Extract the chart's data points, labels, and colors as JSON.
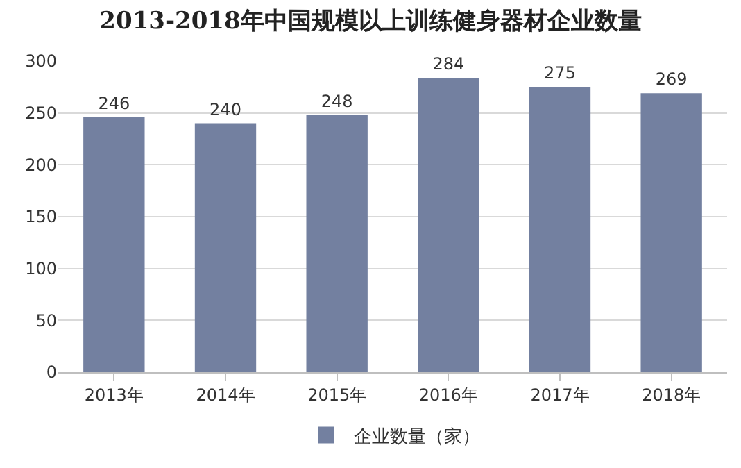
{
  "chart_data": {
    "type": "bar",
    "title": "2013-2018年中国规模以上训练健身器材企业数量",
    "categories": [
      "2013年",
      "2014年",
      "2015年",
      "2016年",
      "2017年",
      "2018年"
    ],
    "series": [
      {
        "name": "企业数量（家）",
        "color": "#7380a0",
        "values": [
          246,
          240,
          248,
          284,
          275,
          269
        ]
      }
    ],
    "ylim": [
      0,
      300
    ],
    "yticks": [
      0,
      50,
      100,
      150,
      200,
      250,
      300
    ],
    "grid": "y",
    "legend": "bottom",
    "data_labels": true
  }
}
